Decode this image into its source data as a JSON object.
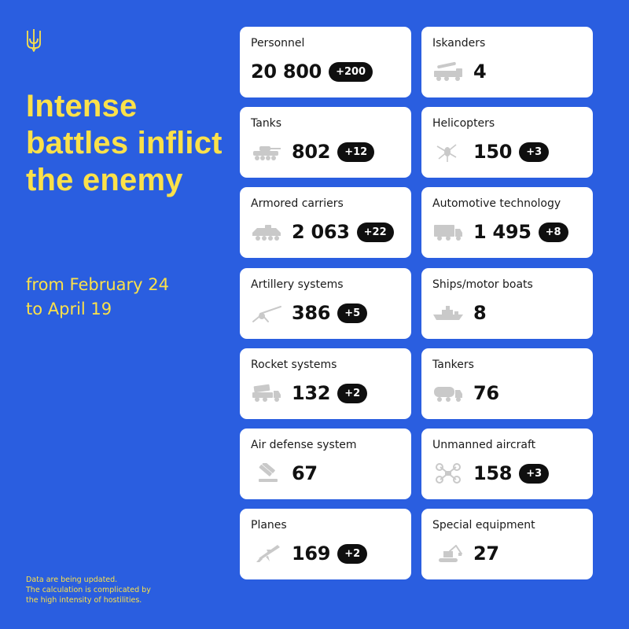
{
  "headline": "Intense battles inflict the enemy",
  "period": [
    "from February 24",
    "to April 19"
  ],
  "note": [
    "Data are being updated.",
    "The calculation is complicated by",
    "the high intensity of hostilities."
  ],
  "cards": [
    {
      "label": "Personnel",
      "value": "20 800",
      "delta": "+200",
      "icon": "personnel"
    },
    {
      "label": "Iskanders",
      "value": "4",
      "delta": "",
      "icon": "iskander-icon"
    },
    {
      "label": "Tanks",
      "value": "802",
      "delta": "+12",
      "icon": "tank-icon"
    },
    {
      "label": "Helicopters",
      "value": "150",
      "delta": "+3",
      "icon": "helicopter-icon"
    },
    {
      "label": "Armored carriers",
      "value": "2 063",
      "delta": "+22",
      "icon": "armored-carrier-icon"
    },
    {
      "label": "Automotive technology",
      "value": "1 495",
      "delta": "+8",
      "icon": "truck-icon"
    },
    {
      "label": "Artillery systems",
      "value": "386",
      "delta": "+5",
      "icon": "artillery-icon"
    },
    {
      "label": "Ships/motor boats",
      "value": "8",
      "delta": "",
      "icon": "ship-icon"
    },
    {
      "label": "Rocket systems",
      "value": "132",
      "delta": "+2",
      "icon": "rocket-launcher-icon"
    },
    {
      "label": "Tankers",
      "value": "76",
      "delta": "",
      "icon": "fuel-tanker-icon"
    },
    {
      "label": "Air defense system",
      "value": "67",
      "delta": "",
      "icon": "air-defense-icon"
    },
    {
      "label": "Unmanned aircraft",
      "value": "158",
      "delta": "+3",
      "icon": "drone-icon"
    },
    {
      "label": "Planes",
      "value": "169",
      "delta": "+2",
      "icon": "plane-icon"
    },
    {
      "label": "Special equipment",
      "value": "27",
      "delta": "",
      "icon": "excavator-icon"
    }
  ],
  "colors": {
    "background": "#2a5ee0",
    "accent": "#fbe14a",
    "card": "#ffffff",
    "badge": "#0f0f0f",
    "icon": "#c9c9c9"
  }
}
